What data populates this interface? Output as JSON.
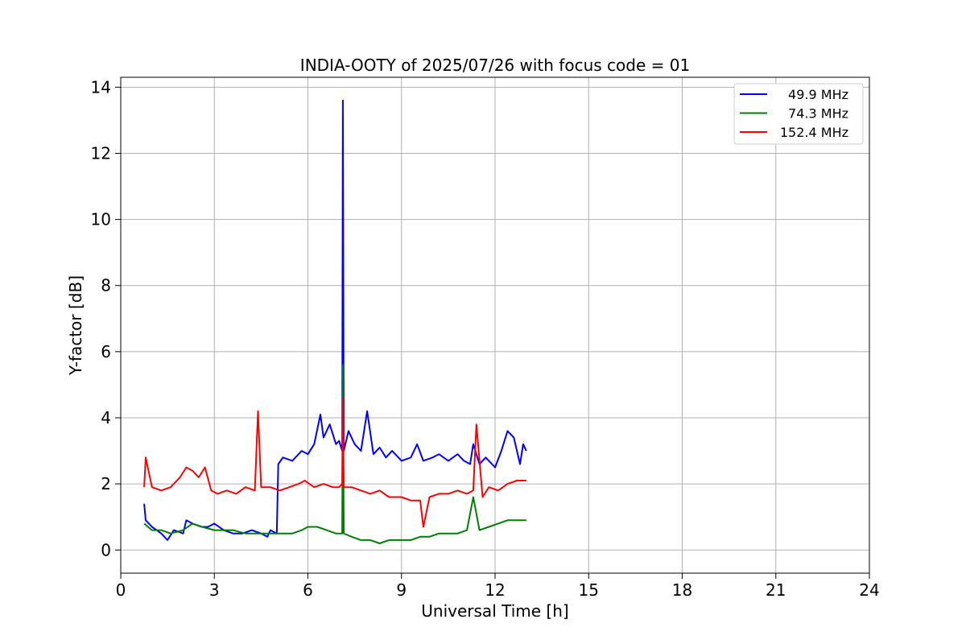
{
  "chart_data": {
    "type": "line",
    "title": "INDIA-OOTY of 2025/07/26 with focus code = 01",
    "xlabel": "Universal Time [h]",
    "ylabel": "Y-factor [dB]",
    "xlim": [
      0,
      24
    ],
    "ylim": [
      -0.7,
      14.3
    ],
    "xticks": [
      0,
      3,
      6,
      9,
      12,
      15,
      18,
      21,
      24
    ],
    "yticks": [
      0,
      2,
      4,
      6,
      8,
      10,
      12,
      14
    ],
    "grid": true,
    "legend_position": "top-right",
    "series": [
      {
        "name": "49.9 MHz",
        "color": "#0000ff",
        "x": [
          0.75,
          0.8,
          1.0,
          1.3,
          1.5,
          1.7,
          2.0,
          2.1,
          2.3,
          2.6,
          2.8,
          3.0,
          3.3,
          3.6,
          3.9,
          4.2,
          4.5,
          4.7,
          4.8,
          5.0,
          5.05,
          5.2,
          5.5,
          5.8,
          6.0,
          6.2,
          6.4,
          6.5,
          6.7,
          6.9,
          7.0,
          7.1,
          7.12,
          7.15,
          7.3,
          7.5,
          7.7,
          7.9,
          8.1,
          8.3,
          8.5,
          8.7,
          9.0,
          9.3,
          9.5,
          9.7,
          10.0,
          10.2,
          10.5,
          10.8,
          11.0,
          11.2,
          11.3,
          11.5,
          11.7,
          12.0,
          12.2,
          12.4,
          12.6,
          12.8,
          12.9,
          13.0
        ],
        "y": [
          1.4,
          0.9,
          0.7,
          0.5,
          0.3,
          0.6,
          0.5,
          0.9,
          0.8,
          0.7,
          0.7,
          0.8,
          0.6,
          0.5,
          0.5,
          0.6,
          0.5,
          0.4,
          0.6,
          0.5,
          2.6,
          2.8,
          2.7,
          3.0,
          2.9,
          3.2,
          4.1,
          3.4,
          3.8,
          3.2,
          3.3,
          3.0,
          13.6,
          3.0,
          3.6,
          3.2,
          3.0,
          4.2,
          2.9,
          3.1,
          2.8,
          3.0,
          2.7,
          2.8,
          3.2,
          2.7,
          2.8,
          2.9,
          2.7,
          2.9,
          2.7,
          2.6,
          3.2,
          2.6,
          2.8,
          2.5,
          3.0,
          3.6,
          3.4,
          2.6,
          3.2,
          3.0
        ]
      },
      {
        "name": "74.3 MHz",
        "color": "#008000",
        "x": [
          0.75,
          1.0,
          1.3,
          1.6,
          2.0,
          2.3,
          2.6,
          3.0,
          3.3,
          3.6,
          4.0,
          4.4,
          4.8,
          5.2,
          5.5,
          5.8,
          6.0,
          6.3,
          6.6,
          6.9,
          7.1,
          7.12,
          7.15,
          7.4,
          7.7,
          8.0,
          8.3,
          8.6,
          9.0,
          9.3,
          9.6,
          9.9,
          10.2,
          10.5,
          10.8,
          11.1,
          11.3,
          11.5,
          11.8,
          12.1,
          12.4,
          12.7,
          13.0
        ],
        "y": [
          0.8,
          0.6,
          0.6,
          0.5,
          0.6,
          0.8,
          0.7,
          0.6,
          0.6,
          0.6,
          0.5,
          0.5,
          0.5,
          0.5,
          0.5,
          0.6,
          0.7,
          0.7,
          0.6,
          0.5,
          0.5,
          5.6,
          0.5,
          0.4,
          0.3,
          0.3,
          0.2,
          0.3,
          0.3,
          0.3,
          0.4,
          0.4,
          0.5,
          0.5,
          0.5,
          0.6,
          1.6,
          0.6,
          0.7,
          0.8,
          0.9,
          0.9,
          0.9
        ]
      },
      {
        "name": "152.4 MHz",
        "color": "#ff0000",
        "x": [
          0.75,
          0.8,
          1.0,
          1.3,
          1.6,
          1.9,
          2.1,
          2.3,
          2.5,
          2.7,
          2.9,
          3.1,
          3.4,
          3.7,
          4.0,
          4.3,
          4.4,
          4.5,
          4.8,
          5.1,
          5.4,
          5.7,
          5.9,
          6.2,
          6.5,
          6.8,
          7.0,
          7.1,
          7.12,
          7.15,
          7.4,
          7.7,
          8.0,
          8.3,
          8.6,
          9.0,
          9.3,
          9.6,
          9.7,
          9.9,
          10.2,
          10.5,
          10.8,
          11.1,
          11.3,
          11.4,
          11.6,
          11.8,
          12.1,
          12.4,
          12.7,
          13.0
        ],
        "y": [
          1.9,
          2.8,
          1.9,
          1.8,
          1.9,
          2.2,
          2.5,
          2.4,
          2.2,
          2.5,
          1.8,
          1.7,
          1.8,
          1.7,
          1.9,
          1.8,
          4.2,
          1.9,
          1.9,
          1.8,
          1.9,
          2.0,
          2.1,
          1.9,
          2.0,
          1.9,
          1.9,
          2.0,
          4.6,
          1.9,
          1.9,
          1.8,
          1.7,
          1.8,
          1.6,
          1.6,
          1.5,
          1.5,
          0.7,
          1.6,
          1.7,
          1.7,
          1.8,
          1.7,
          1.8,
          3.8,
          1.6,
          1.9,
          1.8,
          2.0,
          2.1,
          2.1
        ]
      }
    ]
  }
}
